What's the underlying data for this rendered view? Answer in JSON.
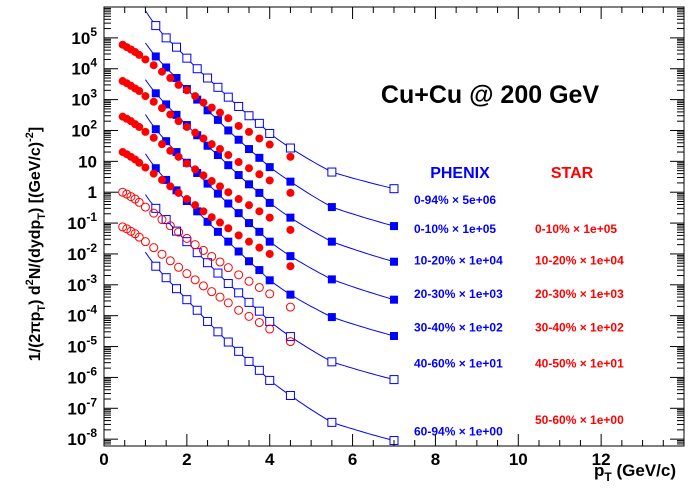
{
  "chart_data": {
    "type": "scatter",
    "title": "Cu+Cu @ 200 GeV",
    "xlabel": {
      "base": "p",
      "sub": "T",
      "rest": " (GeV/c)"
    },
    "ylabel": {
      "parts": [
        {
          "t": "1/(2πp"
        },
        {
          "t": "T",
          "s": "sub"
        },
        {
          "t": ") d"
        },
        {
          "t": "2",
          "s": "sup"
        },
        {
          "t": "N/(dydp"
        },
        {
          "t": "T",
          "s": "sub"
        },
        {
          "t": ")  [(GeV/c)"
        },
        {
          "t": "-2",
          "s": "sup"
        },
        {
          "t": "]"
        }
      ]
    },
    "xlim": [
      0,
      14
    ],
    "ylim": [
      6e-09,
      1000000.0
    ],
    "ylog": true,
    "x_ticks": [
      "0",
      "2",
      "4",
      "6",
      "8",
      "10",
      "12"
    ],
    "y_ticks": [
      {
        "base": "10",
        "exp": "-8"
      },
      {
        "base": "10",
        "exp": "-7"
      },
      {
        "base": "10",
        "exp": "-6"
      },
      {
        "base": "10",
        "exp": "-5"
      },
      {
        "base": "10",
        "exp": "-4"
      },
      {
        "base": "10",
        "exp": "-3"
      },
      {
        "base": "10",
        "exp": "-2"
      },
      {
        "base": "10",
        "exp": "-1"
      },
      {
        "base": "1",
        "exp": ""
      },
      {
        "base": "10",
        "exp": ""
      },
      {
        "base": "10",
        "exp": "2"
      },
      {
        "base": "10",
        "exp": "3"
      },
      {
        "base": "10",
        "exp": "4"
      },
      {
        "base": "10",
        "exp": "5"
      }
    ],
    "legend_headers": {
      "phenix": "PHENIX",
      "star": "STAR"
    },
    "phenix_x": [
      1.25,
      1.5,
      1.75,
      2.0,
      2.25,
      2.5,
      2.75,
      3.0,
      3.25,
      3.5,
      3.75,
      4.0,
      4.5,
      5.5,
      7.0
    ],
    "star_x": [
      0.45,
      0.55,
      0.65,
      0.75,
      0.85,
      1.0,
      1.2,
      1.4,
      1.6,
      1.8,
      2.0,
      2.2,
      2.4,
      2.6,
      2.8,
      3.0,
      3.25,
      3.5,
      3.75,
      4.0,
      4.5
    ],
    "series": [
      {
        "name": "0-94% × 5e+06",
        "experiment": "PHENIX",
        "marker": "open-square",
        "values": [
          250000.0,
          100000.0,
          50000.0,
          22000.0,
          10000.0,
          5000.0,
          2500.0,
          1200.0,
          600.0,
          300.0,
          170.0,
          80.0,
          27.0,
          4.5,
          1.3
        ]
      },
      {
        "name": "0-10% × 1e+05",
        "experiment": "PHENIX",
        "marker": "filled-square",
        "values": [
          25000.0,
          11000.0,
          5000.0,
          2200.0,
          1000.0,
          450.0,
          220.0,
          100.0,
          50.0,
          25.0,
          13.0,
          6.5,
          2.2,
          0.33,
          0.08
        ]
      },
      {
        "name": "10-20% × 1e+04",
        "experiment": "PHENIX",
        "marker": "filled-square",
        "values": [
          1600.0,
          700.0,
          320.0,
          150.0,
          70.0,
          32.0,
          16.0,
          7.5,
          3.6,
          1.8,
          0.95,
          0.45,
          0.15,
          0.025,
          0.0056
        ]
      },
      {
        "name": "20-30% × 1e+03",
        "experiment": "PHENIX",
        "marker": "filled-square",
        "values": [
          110.0,
          45.0,
          20.0,
          9.0,
          4.2,
          1.9,
          0.9,
          0.43,
          0.21,
          0.1,
          0.052,
          0.025,
          0.0085,
          0.0015,
          0.00033
        ]
      },
      {
        "name": "30-40% × 1e+02",
        "experiment": "PHENIX",
        "marker": "filled-square",
        "values": [
          6.0,
          2.5,
          1.15,
          0.52,
          0.24,
          0.11,
          0.052,
          0.025,
          0.012,
          0.0058,
          0.003,
          0.0014,
          0.00048,
          9e-05,
          2.2e-05
        ]
      },
      {
        "name": "40-60% × 1e+01",
        "experiment": "PHENIX",
        "marker": "open-square",
        "values": [
          0.3,
          0.13,
          0.055,
          0.025,
          0.011,
          0.0052,
          0.0024,
          0.0011,
          0.00055,
          0.00027,
          0.00014,
          6.5e-05,
          2.1e-05,
          3.2e-06,
          8.5e-07
        ]
      },
      {
        "name": "60-94% × 1e+00",
        "experiment": "PHENIX",
        "marker": "open-square",
        "values": [
          0.004,
          0.0017,
          0.00075,
          0.00033,
          0.00015,
          6.5e-05,
          3e-05,
          1.4e-05,
          7e-06,
          3.3e-06,
          1.7e-06,
          8e-07,
          2.6e-07,
          3.5e-08,
          9e-09
        ]
      },
      {
        "name": "0-10% × 1e+05",
        "experiment": "STAR",
        "marker": "filled-circle",
        "values": [
          60000.0,
          50000.0,
          42000.0,
          35000.0,
          28000.0,
          20000.0,
          13000.0,
          8000.0,
          5000.0,
          3000.0,
          2000.0,
          1300.0,
          800.0,
          550.0,
          380.0,
          250.0,
          140.0,
          90.0,
          55.0,
          35.0,
          14.0
        ]
      },
      {
        "name": "10-20% × 1e+04",
        "experiment": "STAR",
        "marker": "filled-circle",
        "values": [
          4000.0,
          3400.0,
          2800.0,
          2300.0,
          1900.0,
          1300.0,
          850.0,
          530.0,
          330.0,
          200.0,
          130.0,
          85.0,
          55.0,
          36.0,
          25.0,
          16.0,
          9.5,
          6.0,
          3.8,
          2.4,
          0.95
        ]
      },
      {
        "name": "20-30% × 1e+03",
        "experiment": "STAR",
        "marker": "filled-circle",
        "values": [
          280.0,
          240.0,
          200.0,
          160.0,
          130.0,
          90.0,
          58.0,
          36.0,
          22.0,
          14.0,
          8.5,
          5.5,
          3.5,
          2.3,
          1.55,
          1.0,
          0.6,
          0.38,
          0.24,
          0.15,
          0.06
        ]
      },
      {
        "name": "30-40% × 1e+02",
        "experiment": "STAR",
        "marker": "filled-circle",
        "values": [
          20.0,
          17.0,
          14.0,
          11.5,
          9.0,
          6.3,
          4.0,
          2.5,
          1.55,
          0.95,
          0.6,
          0.38,
          0.24,
          0.155,
          0.104,
          0.068,
          0.04,
          0.025,
          0.016,
          0.01,
          0.004
        ]
      },
      {
        "name": "40-50% × 1e+01",
        "experiment": "STAR",
        "marker": "open-circle",
        "values": [
          1.0,
          0.87,
          0.72,
          0.6,
          0.47,
          0.33,
          0.21,
          0.13,
          0.082,
          0.051,
          0.032,
          0.02,
          0.013,
          0.0083,
          0.0055,
          0.0036,
          0.0021,
          0.0013,
          0.00082,
          0.00051,
          0.00019
        ]
      },
      {
        "name": "50-60% × 1e+00",
        "experiment": "STAR",
        "marker": "open-circle",
        "values": [
          0.075,
          0.065,
          0.054,
          0.045,
          0.035,
          0.025,
          0.016,
          0.0098,
          0.006,
          0.0037,
          0.0023,
          0.00145,
          0.00092,
          0.0006,
          0.0004,
          0.00026,
          0.00015,
          9.5e-05,
          6e-05,
          3.7e-05,
          1.45e-05
        ]
      }
    ],
    "phenix_labels": [
      {
        "text": "0-94% × 5e+06",
        "y": 0.6
      },
      {
        "text": "0-10% × 1e+05",
        "y": 0.07
      },
      {
        "text": "10-20% × 1e+04",
        "y": 0.0065
      },
      {
        "text": "20-30% × 1e+03",
        "y": 0.00055
      },
      {
        "text": "30-40% × 1e+02",
        "y": 4.5e-05
      },
      {
        "text": "40-60% × 1e+01",
        "y": 3e-06
      },
      {
        "text": "60-94% × 1e+00",
        "y": 1.9e-08
      }
    ],
    "star_labels": [
      {
        "text": "0-10% × 1e+05",
        "y": 0.07
      },
      {
        "text": "10-20% × 1e+04",
        "y": 0.0065
      },
      {
        "text": "20-30% × 1e+03",
        "y": 0.00055
      },
      {
        "text": "30-40% × 1e+02",
        "y": 4.5e-05
      },
      {
        "text": "40-50% × 1e+01",
        "y": 3e-06
      },
      {
        "text": "50-60% × 1e+00",
        "y": 4.5e-08
      }
    ],
    "colors": {
      "phenix": "#0000ff",
      "star": "#ff0000",
      "axis": "#000000"
    }
  }
}
